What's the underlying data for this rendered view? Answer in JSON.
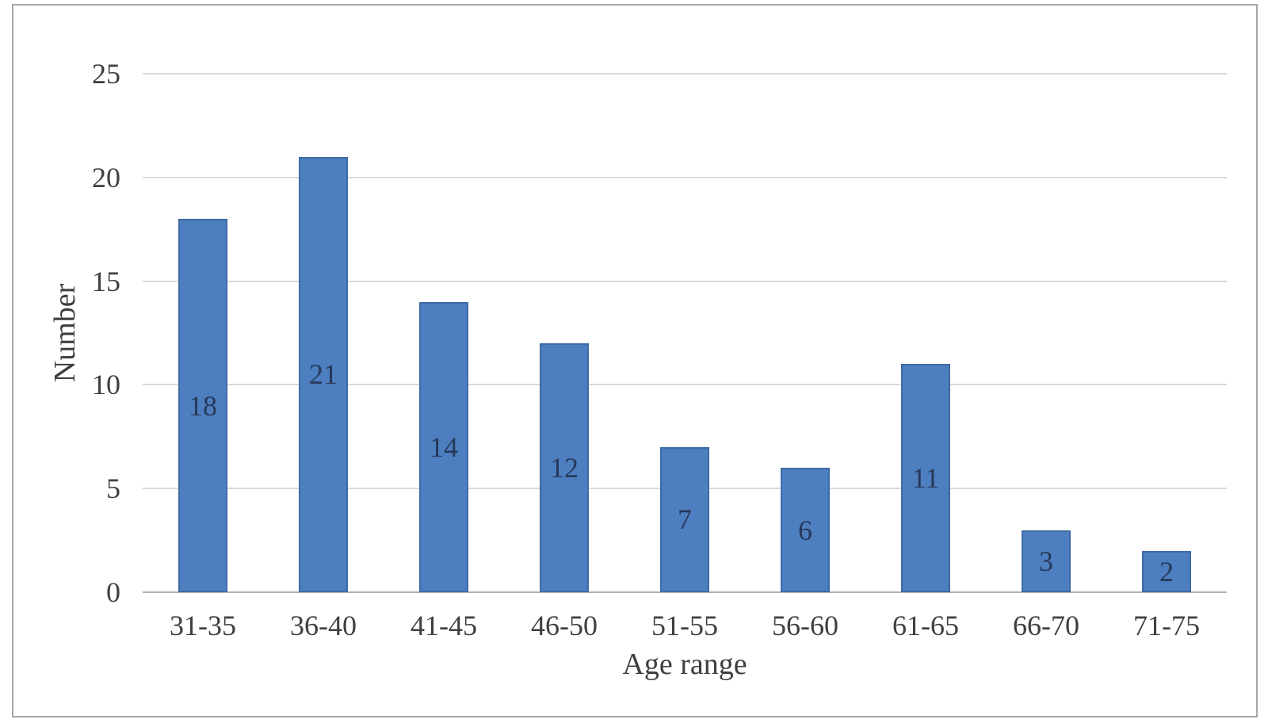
{
  "figure": {
    "background": "#ffffff",
    "frame_border_color": "#a8a8a8"
  },
  "chart_data": {
    "type": "bar",
    "title": "",
    "categories": [
      "31-35",
      "36-40",
      "41-45",
      "46-50",
      "51-55",
      "56-60",
      "61-65",
      "66-70",
      "71-75"
    ],
    "values": [
      18,
      21,
      14,
      12,
      7,
      6,
      11,
      3,
      2
    ],
    "xlabel": "Age range",
    "ylabel": "Number",
    "ylim": [
      0,
      25
    ],
    "yticks": [
      0,
      5,
      10,
      15,
      20,
      25
    ],
    "grid": "horizontal",
    "legend_position": "none",
    "data_label_position": "center-inside",
    "colors": {
      "bar_fill": "#4d7ebf",
      "bar_border": "#3e6ba6",
      "gridline": "#dadada",
      "axis_line": "#b3b3b3",
      "tick_text": "#3f3f3f",
      "data_label_text": "#27395a"
    }
  }
}
